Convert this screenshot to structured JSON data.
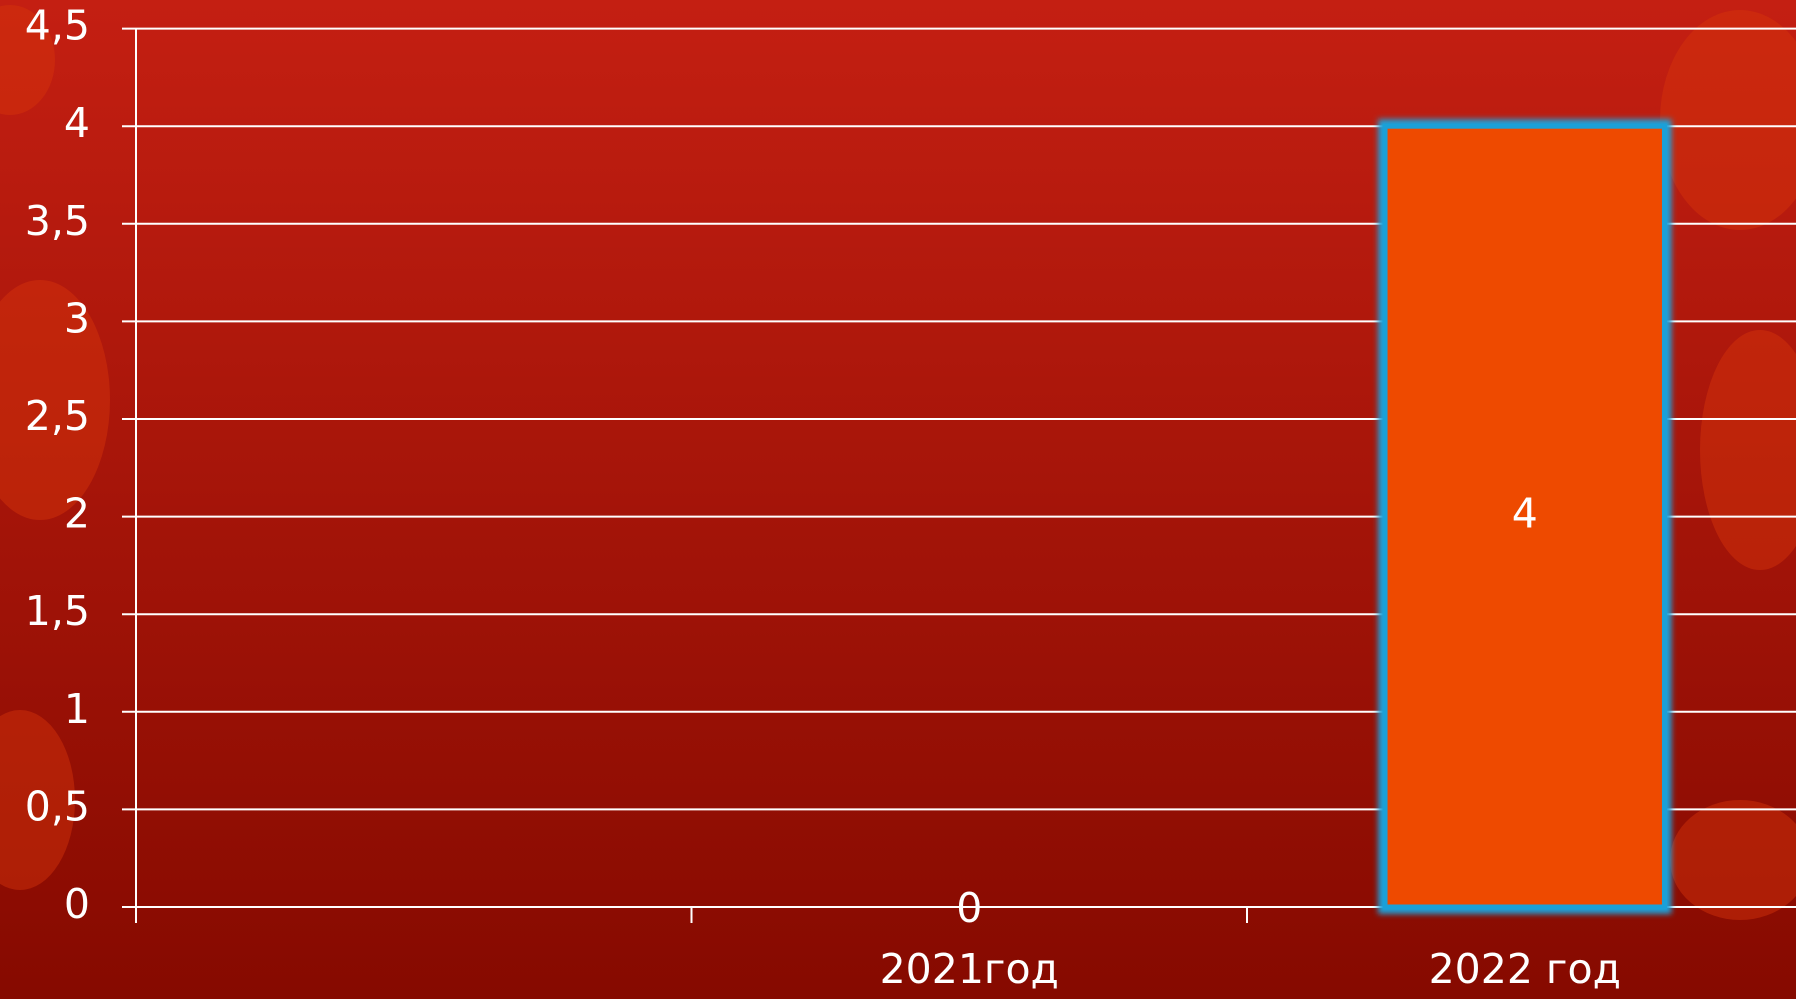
{
  "chart_data": {
    "type": "bar",
    "categories": [
      null,
      "2021год",
      "2022 год"
    ],
    "values": [
      null,
      0,
      4
    ],
    "color": "#ee4a00",
    "edge_color": "#1aa0d8",
    "ylim": [
      0,
      4.5
    ],
    "yticks": [
      0,
      {
        "value": 0.5,
        "label": "0,5"
      },
      1,
      {
        "value": 1.5,
        "label": "1,5"
      },
      2,
      {
        "value": 2.5,
        "label": "2,5"
      },
      3,
      {
        "value": 3.5,
        "label": "3,5"
      },
      4,
      {
        "value": 4.5,
        "label": "4,5"
      }
    ],
    "grid": true,
    "data_labels": true
  }
}
